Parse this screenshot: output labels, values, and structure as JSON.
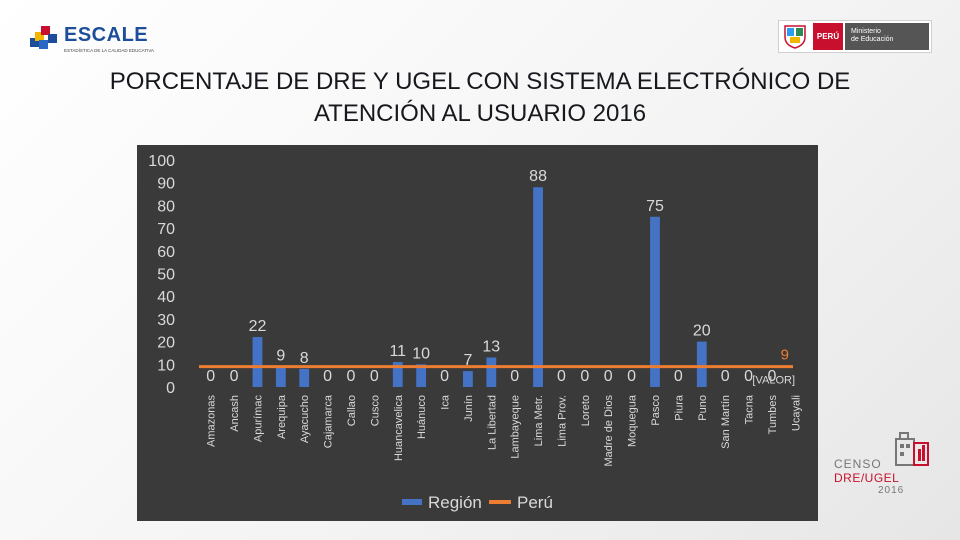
{
  "header": {
    "escale_logo_text": "ESCALE",
    "escale_tagline": "ESTADÍSTICA DE LA CALIDAD EDUCATIVA",
    "peru_text": "PERÚ",
    "ministry_line1": "Ministerio",
    "ministry_line2": "de Educación"
  },
  "title": {
    "line1": "PORCENTAJE DE DRE Y UGEL CON SISTEMA ELECTRÓNICO DE",
    "line2": "ATENCIÓN AL USUARIO 2016"
  },
  "censo_logo": {
    "line1": "CENSO",
    "line2": "DRE/UGEL",
    "line3": "2016"
  },
  "colors": {
    "bar": "#4472c4",
    "line": "#ed7d31",
    "panel_bg": "#3a3a3a",
    "text_light": "#d9d9d9",
    "line_label": "#ed7d31"
  },
  "chart_data": {
    "type": "bar",
    "title": "",
    "xlabel": "",
    "ylabel": "",
    "ylim": [
      0,
      100
    ],
    "yticks": [
      "0",
      "10",
      "20",
      "30",
      "40",
      "50",
      "60",
      "70",
      "80",
      "90",
      "100"
    ],
    "grid": false,
    "legend_position": "bottom",
    "categories": [
      "Amazonas",
      "Ancash",
      "Apurímac",
      "Arequipa",
      "Ayacucho",
      "Cajamarca",
      "Callao",
      "Cusco",
      "Huancavelica",
      "Huánuco",
      "Ica",
      "Junín",
      "La Libertad",
      "Lambayeque",
      "Lima Metr.",
      "Lima Prov.",
      "Loreto",
      "Madre de Dios",
      "Moquegua",
      "Pasco",
      "Piura",
      "Puno",
      "San Martín",
      "Tacna",
      "Tumbes",
      "Ucayali"
    ],
    "series": [
      {
        "name": "Región",
        "kind": "bar",
        "values": [
          0,
          0,
          22,
          9,
          8,
          0,
          0,
          0,
          11,
          10,
          0,
          7,
          13,
          0,
          88,
          0,
          0,
          0,
          0,
          75,
          0,
          20,
          0,
          0,
          0,
          null
        ],
        "labels": [
          "0",
          "0",
          "22",
          "9",
          "8",
          "0",
          "0",
          "0",
          "11",
          "10",
          "0",
          "7",
          "13",
          "0",
          "88",
          "0",
          "0",
          "0",
          "0",
          "75",
          "0",
          "20",
          "0",
          "0",
          "0",
          ""
        ]
      },
      {
        "name": "Perú",
        "kind": "line",
        "value": 9,
        "end_label": "9",
        "extra_label": "[VALOR]"
      }
    ]
  }
}
